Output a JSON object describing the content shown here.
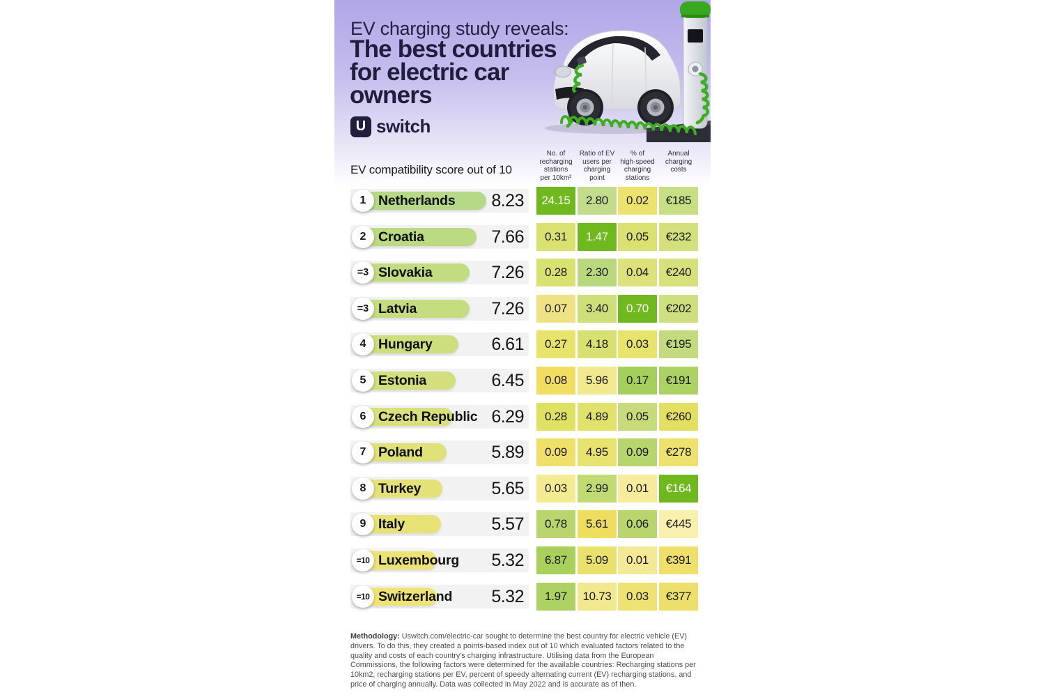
{
  "chart_data": {
    "type": "table",
    "kicker": "EV charging study reveals:",
    "title": "The best countries\nfor electric car\nowners",
    "title_flat": "The best countries for electric car owners",
    "brand": {
      "logo_u": "U",
      "logo_rest": "switch"
    },
    "score_axis_label": "EV compatibility score out of 10",
    "score_range": [
      0,
      10
    ],
    "legend_note": "cell color encodes relative performance (green = better, yellow = worse)",
    "accent_green": "#6fb91e",
    "metric_columns": [
      "No. of\nrecharging\nstations\nper 10km²",
      "Ratio of EV\nusers per\ncharging\npoint",
      "% of\nhigh-speed\ncharging\nstations",
      "Annual\ncharging\ncosts"
    ],
    "rows": [
      {
        "rank": "1",
        "country": "Netherlands",
        "score": "8.23",
        "score_num": 8.23,
        "bar_color": "#b6d987",
        "cells": [
          {
            "v": "24.15",
            "bg": "#6fb91e",
            "fg": "#ffffff"
          },
          {
            "v": "2.80",
            "bg": "#c3dc8c"
          },
          {
            "v": "0.02",
            "bg": "#ece26e"
          },
          {
            "v": "€185",
            "bg": "#c7de85"
          }
        ]
      },
      {
        "rank": "2",
        "country": "Croatia",
        "score": "7.66",
        "score_num": 7.66,
        "bar_color": "#bcda83",
        "cells": [
          {
            "v": "0.31",
            "bg": "#d9e170"
          },
          {
            "v": "1.47",
            "bg": "#6fb91e",
            "fg": "#ffffff"
          },
          {
            "v": "0.05",
            "bg": "#d9e170"
          },
          {
            "v": "€232",
            "bg": "#d3e07c"
          }
        ]
      },
      {
        "rank": "=3",
        "country": "Slovakia",
        "score": "7.26",
        "score_num": 7.26,
        "bar_color": "#c2dc82",
        "cells": [
          {
            "v": "0.28",
            "bg": "#d9e170"
          },
          {
            "v": "2.30",
            "bg": "#b9d87e"
          },
          {
            "v": "0.04",
            "bg": "#dce17a"
          },
          {
            "v": "€240",
            "bg": "#d7e17c"
          }
        ]
      },
      {
        "rank": "=3",
        "country": "Latvia",
        "score": "7.26",
        "score_num": 7.26,
        "bar_color": "#c5dc80",
        "cells": [
          {
            "v": "0.07",
            "bg": "#eee285"
          },
          {
            "v": "3.40",
            "bg": "#cedf7a"
          },
          {
            "v": "0.70",
            "bg": "#6fb91e",
            "fg": "#ffffff"
          },
          {
            "v": "€202",
            "bg": "#cddf7e"
          }
        ]
      },
      {
        "rank": "4",
        "country": "Hungary",
        "score": "6.61",
        "score_num": 6.61,
        "bar_color": "#cdde7f",
        "cells": [
          {
            "v": "0.27",
            "bg": "#e8e36b"
          },
          {
            "v": "4.18",
            "bg": "#d9e072"
          },
          {
            "v": "0.03",
            "bg": "#e8e36b"
          },
          {
            "v": "€195",
            "bg": "#c3db7e"
          }
        ]
      },
      {
        "rank": "5",
        "country": "Estonia",
        "score": "6.45",
        "score_num": 6.45,
        "bar_color": "#d3df7d",
        "cells": [
          {
            "v": "0.08",
            "bg": "#f0dd62"
          },
          {
            "v": "5.96",
            "bg": "#f2e88f"
          },
          {
            "v": "0.17",
            "bg": "#a4cf5a"
          },
          {
            "v": "€191",
            "bg": "#abd263"
          }
        ]
      },
      {
        "rank": "6",
        "country": "Czech Republic",
        "score": "6.29",
        "score_num": 6.29,
        "bar_color": "#d9e07b",
        "cells": [
          {
            "v": "0.28",
            "bg": "#dfe163"
          },
          {
            "v": "4.89",
            "bg": "#e0e26b"
          },
          {
            "v": "0.05",
            "bg": "#c7db7b"
          },
          {
            "v": "€260",
            "bg": "#e3df63"
          }
        ]
      },
      {
        "rank": "7",
        "country": "Poland",
        "score": "5.89",
        "score_num": 5.89,
        "bar_color": "#dfe179",
        "cells": [
          {
            "v": "0.09",
            "bg": "#eee068"
          },
          {
            "v": "4.95",
            "bg": "#e8e26f"
          },
          {
            "v": "0.09",
            "bg": "#b7d56d"
          },
          {
            "v": "€278",
            "bg": "#ece26d"
          }
        ]
      },
      {
        "rank": "8",
        "country": "Turkey",
        "score": "5.65",
        "score_num": 5.65,
        "bar_color": "#e3e177",
        "cells": [
          {
            "v": "0.03",
            "bg": "#f4ea91"
          },
          {
            "v": "2.99",
            "bg": "#c1da73"
          },
          {
            "v": "0.01",
            "bg": "#f6ec9c"
          },
          {
            "v": "€164",
            "bg": "#6fb91e",
            "fg": "#ffffff"
          }
        ]
      },
      {
        "rank": "9",
        "country": "Italy",
        "score": "5.57",
        "score_num": 5.57,
        "bar_color": "#e7e276",
        "cells": [
          {
            "v": "0.78",
            "bg": "#b8d56e"
          },
          {
            "v": "5.61",
            "bg": "#eedd5f"
          },
          {
            "v": "0.06",
            "bg": "#b8d56e"
          },
          {
            "v": "€445",
            "bg": "#faf0ad"
          }
        ]
      },
      {
        "rank": "=10",
        "country": "Luxembourg",
        "score": "5.32",
        "score_num": 5.32,
        "bar_color": "#ebe374",
        "cells": [
          {
            "v": "6.87",
            "bg": "#aad05c"
          },
          {
            "v": "5.09",
            "bg": "#e9e16c"
          },
          {
            "v": "0.01",
            "bg": "#f4ea95"
          },
          {
            "v": "€391",
            "bg": "#eee06a"
          }
        ]
      },
      {
        "rank": "=10",
        "country": "Switzerland",
        "score": "5.32",
        "score_num": 5.32,
        "bar_color": "#efe473",
        "cells": [
          {
            "v": "1.97",
            "bg": "#add162"
          },
          {
            "v": "10.73",
            "bg": "#f2e88f"
          },
          {
            "v": "0.03",
            "bg": "#eee272"
          },
          {
            "v": "€377",
            "bg": "#ece06b"
          }
        ]
      }
    ]
  },
  "methodology": {
    "label": "Methodology:",
    "body": " Uswitch.com/electric-car sought to determine the best country for electric vehicle (EV) drivers. To do this, they created a points-based index out of 10 which evaluated factors related to the quality and costs of each country's charging infrastructure. Utilising data from the European Commissions, the following factors were determined for the available countries: Recharging stations per 10km2, recharging stations per EV, percent of speedy alternating current (EV) recharging stations, and price of charging annually. Data was collected in May 2022 and is accurate as of then."
  }
}
